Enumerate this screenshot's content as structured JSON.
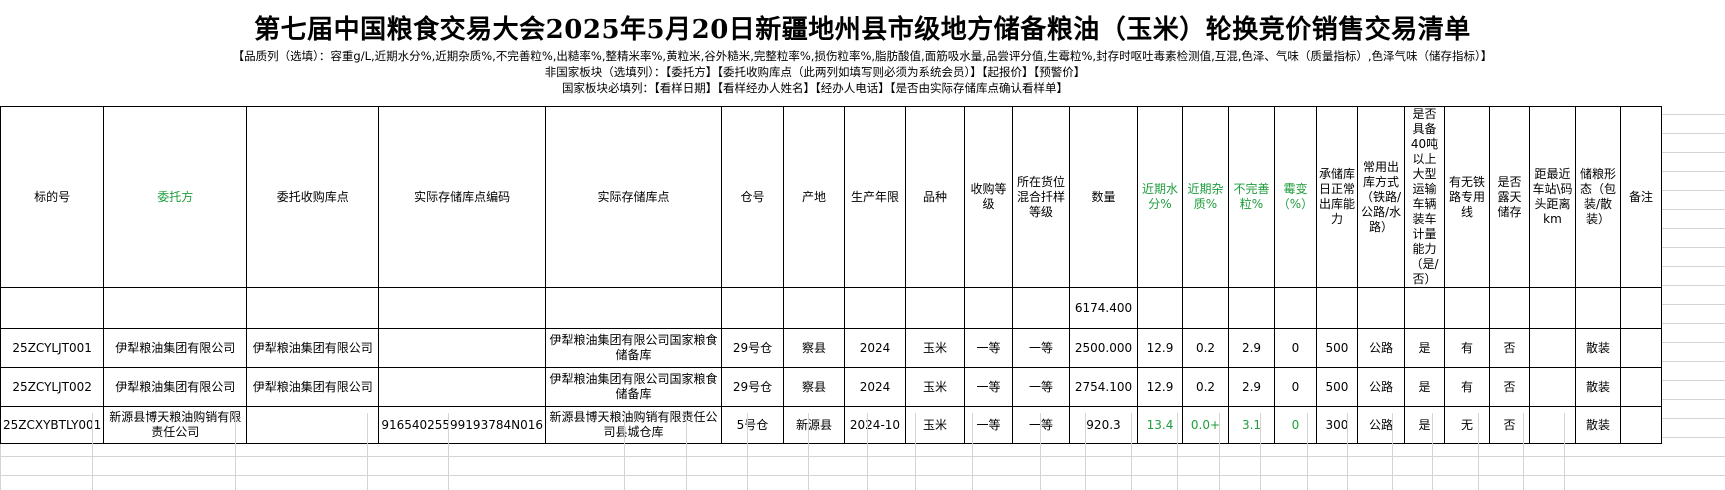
{
  "header": {
    "title": "第七届中国粮食交易大会2025年5月20日新疆地州县市级地方储备粮油（玉米）轮换竞价销售交易清单",
    "note1": "【品质列（选填）：容重g/L,近期水分%,近期杂质%,不完善粒%,出糙率%,整精米率%,黄粒米,谷外糙米,完整粒率%,损伤粒率%,脂肪酸值,面筋吸水量,品尝评分值,生霉粒%,封存时呕吐毒素检测值,互混,色泽、气味（质量指标）,色泽气味（储存指标）】",
    "note2": "非国家板块（选填列）：【委托方】【委托收购库点（此两列如填写则必须为系统会员）】【起报价】【预警价】",
    "note3": "国家板块必填列：【看样日期】【看样经办人姓名】【经办人电话】【是否由实际存储库点确认看样单】"
  },
  "columns": [
    {
      "label": "标的号",
      "color": "#000000"
    },
    {
      "label": "委托方",
      "color": "#1e9e3c"
    },
    {
      "label": "委托收购库点",
      "color": "#000000"
    },
    {
      "label": "实际存储库点编码",
      "color": "#000000"
    },
    {
      "label": "实际存储库点",
      "color": "#000000"
    },
    {
      "label": "仓号",
      "color": "#000000"
    },
    {
      "label": "产地",
      "color": "#000000"
    },
    {
      "label": "生产年限",
      "color": "#000000"
    },
    {
      "label": "品种",
      "color": "#000000"
    },
    {
      "label": "收购等级",
      "color": "#000000"
    },
    {
      "label": "所在货位混合扦样等级",
      "color": "#000000"
    },
    {
      "label": "数量",
      "color": "#000000"
    },
    {
      "label": "近期水分%",
      "color": "#1e9e3c"
    },
    {
      "label": "近期杂质%",
      "color": "#1e9e3c"
    },
    {
      "label": "不完善粒%",
      "color": "#1e9e3c"
    },
    {
      "label": "霉变（%）",
      "color": "#1e9e3c"
    },
    {
      "label": "承储库日正常出库能力",
      "color": "#000000"
    },
    {
      "label": "常用出库方式（铁路/公路/水路）",
      "color": "#000000"
    },
    {
      "label": "是否具备40吨以上大型运输车辆装车计量能力（是/否）",
      "color": "#000000"
    },
    {
      "label": "有无铁路专用线",
      "color": "#000000"
    },
    {
      "label": "是否露天储存",
      "color": "#000000"
    },
    {
      "label": "距最近车站\\码头距离km",
      "color": "#000000"
    },
    {
      "label": "储粮形态（包装/散装）",
      "color": "#000000"
    },
    {
      "label": "备注",
      "color": "#000000"
    }
  ],
  "summary": {
    "quantity_total": "6174.400"
  },
  "rows": [
    {
      "cells": [
        "25ZCYLJT001",
        "伊犁粮油集团有限公司",
        "伊犁粮油集团有限公司",
        "",
        "伊犁粮油集团有限公司国家粮食储备库",
        "29号仓",
        "察县",
        "2024",
        "玉米",
        "一等",
        "一等",
        "2500.000",
        "12.9",
        "0.2",
        "2.9",
        "0",
        "500",
        "公路",
        "是",
        "有",
        "否",
        "",
        "散装",
        ""
      ]
    },
    {
      "cells": [
        "25ZCYLJT002",
        "伊犁粮油集团有限公司",
        "伊犁粮油集团有限公司",
        "",
        "伊犁粮油集团有限公司国家粮食储备库",
        "29号仓",
        "察县",
        "2024",
        "玉米",
        "一等",
        "一等",
        "2754.100",
        "12.9",
        "0.2",
        "2.9",
        "0",
        "500",
        "公路",
        "是",
        "有",
        "否",
        "",
        "散装",
        ""
      ]
    },
    {
      "cells": [
        "25ZCXYBTLY001",
        "新源县博天粮油购销有限责任公司",
        "",
        "91654025599193784N016",
        "新源县博天粮油购销有限责任公司县城仓库",
        "5号仓",
        "新源县",
        "2024-10",
        "玉米",
        "一等",
        "一等",
        "920.3",
        "13.4",
        "0.0+",
        "3.1",
        "0",
        "300",
        "公路",
        "是",
        "无",
        "否",
        "",
        "散装",
        ""
      ],
      "green_cols": [
        12,
        13,
        14,
        15
      ]
    }
  ],
  "colors": {
    "accent_green": "#1e9e3c",
    "grid_line": "#d4d4d4"
  }
}
